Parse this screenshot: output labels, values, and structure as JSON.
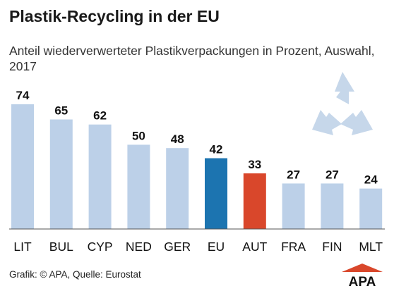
{
  "header": {
    "title": "Plastik-Recycling in der EU",
    "subtitle": "Anteil wiederverwerteter Plastikverpackungen in Prozent, Auswahl, 2017"
  },
  "footer": {
    "source": "Grafik: © APA, Quelle: Eurostat",
    "logo_text": "APA"
  },
  "icons": {
    "recycle": "recycle-icon"
  },
  "colors": {
    "default_bar": "#bcd0e8",
    "eu_bar": "#1c74b0",
    "aut_bar": "#d9472b",
    "recycle_icon": "#c6d7ea"
  },
  "chart_data": {
    "type": "bar",
    "title": "Plastik-Recycling in der EU",
    "subtitle": "Anteil wiederverwerteter Plastikverpackungen in Prozent, Auswahl, 2017",
    "categories": [
      "LIT",
      "BUL",
      "CYP",
      "NED",
      "GER",
      "EU",
      "AUT",
      "FRA",
      "FIN",
      "MLT"
    ],
    "values": [
      74,
      65,
      62,
      50,
      48,
      42,
      33,
      27,
      27,
      24
    ],
    "highlight": {
      "EU": "#1c74b0",
      "AUT": "#d9472b"
    },
    "ylim": [
      0,
      80
    ],
    "grid": false,
    "legend": "none"
  }
}
